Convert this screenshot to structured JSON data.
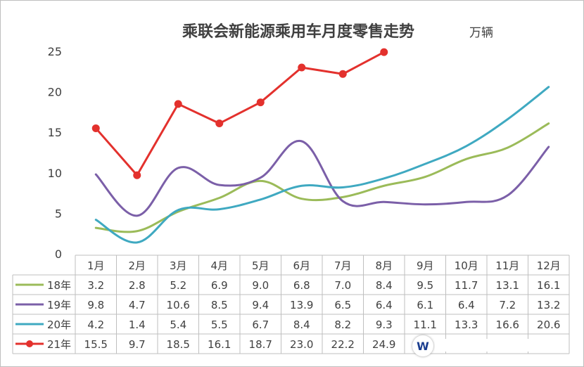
{
  "chart_data": {
    "type": "line",
    "title": "乘联会新能源乘用车月度零售走势",
    "unit": "万辆",
    "categories": [
      "1月",
      "2月",
      "3月",
      "4月",
      "5月",
      "6月",
      "7月",
      "8月",
      "9月",
      "10月",
      "11月",
      "12月"
    ],
    "ylim": [
      0,
      25
    ],
    "yticks": [
      0,
      5,
      10,
      15,
      20,
      25
    ],
    "series": [
      {
        "name": "18年",
        "color": "#9bbb59",
        "marker": false,
        "values": [
          3.2,
          2.8,
          5.2,
          6.9,
          9.0,
          6.8,
          7.0,
          8.4,
          9.5,
          11.7,
          13.1,
          16.1
        ],
        "labels": [
          "3.2",
          "2.8",
          "5.2",
          "6.9",
          "9.0",
          "6.8",
          "7.0",
          "8.4",
          "9.5",
          "11.7",
          "13.1",
          "16.1"
        ]
      },
      {
        "name": "19年",
        "color": "#7b5fa8",
        "marker": false,
        "values": [
          9.8,
          4.7,
          10.6,
          8.5,
          9.4,
          13.9,
          6.5,
          6.4,
          6.1,
          6.4,
          7.2,
          13.2
        ],
        "labels": [
          "9.8",
          "4.7",
          "10.6",
          "8.5",
          "9.4",
          "13.9",
          "6.5",
          "6.4",
          "6.1",
          "6.4",
          "7.2",
          "13.2"
        ]
      },
      {
        "name": "20年",
        "color": "#3fa9c1",
        "marker": false,
        "values": [
          4.2,
          1.4,
          5.4,
          5.5,
          6.7,
          8.4,
          8.2,
          9.3,
          11.1,
          13.3,
          16.6,
          20.6
        ],
        "labels": [
          "4.2",
          "1.4",
          "5.4",
          "5.5",
          "6.7",
          "8.4",
          "8.2",
          "9.3",
          "11.1",
          "13.3",
          "16.6",
          "20.6"
        ]
      },
      {
        "name": "21年",
        "color": "#e3312d",
        "marker": true,
        "values": [
          15.5,
          9.7,
          18.5,
          16.1,
          18.7,
          23.0,
          22.2,
          24.9,
          null,
          null,
          null,
          null
        ],
        "labels": [
          "15.5",
          "9.7",
          "18.5",
          "16.1",
          "18.7",
          "23.0",
          "22.2",
          "24.9",
          "",
          "",
          "",
          ""
        ]
      }
    ],
    "grid": false,
    "legend": "data-table"
  },
  "watermark": {
    "text": "W"
  }
}
